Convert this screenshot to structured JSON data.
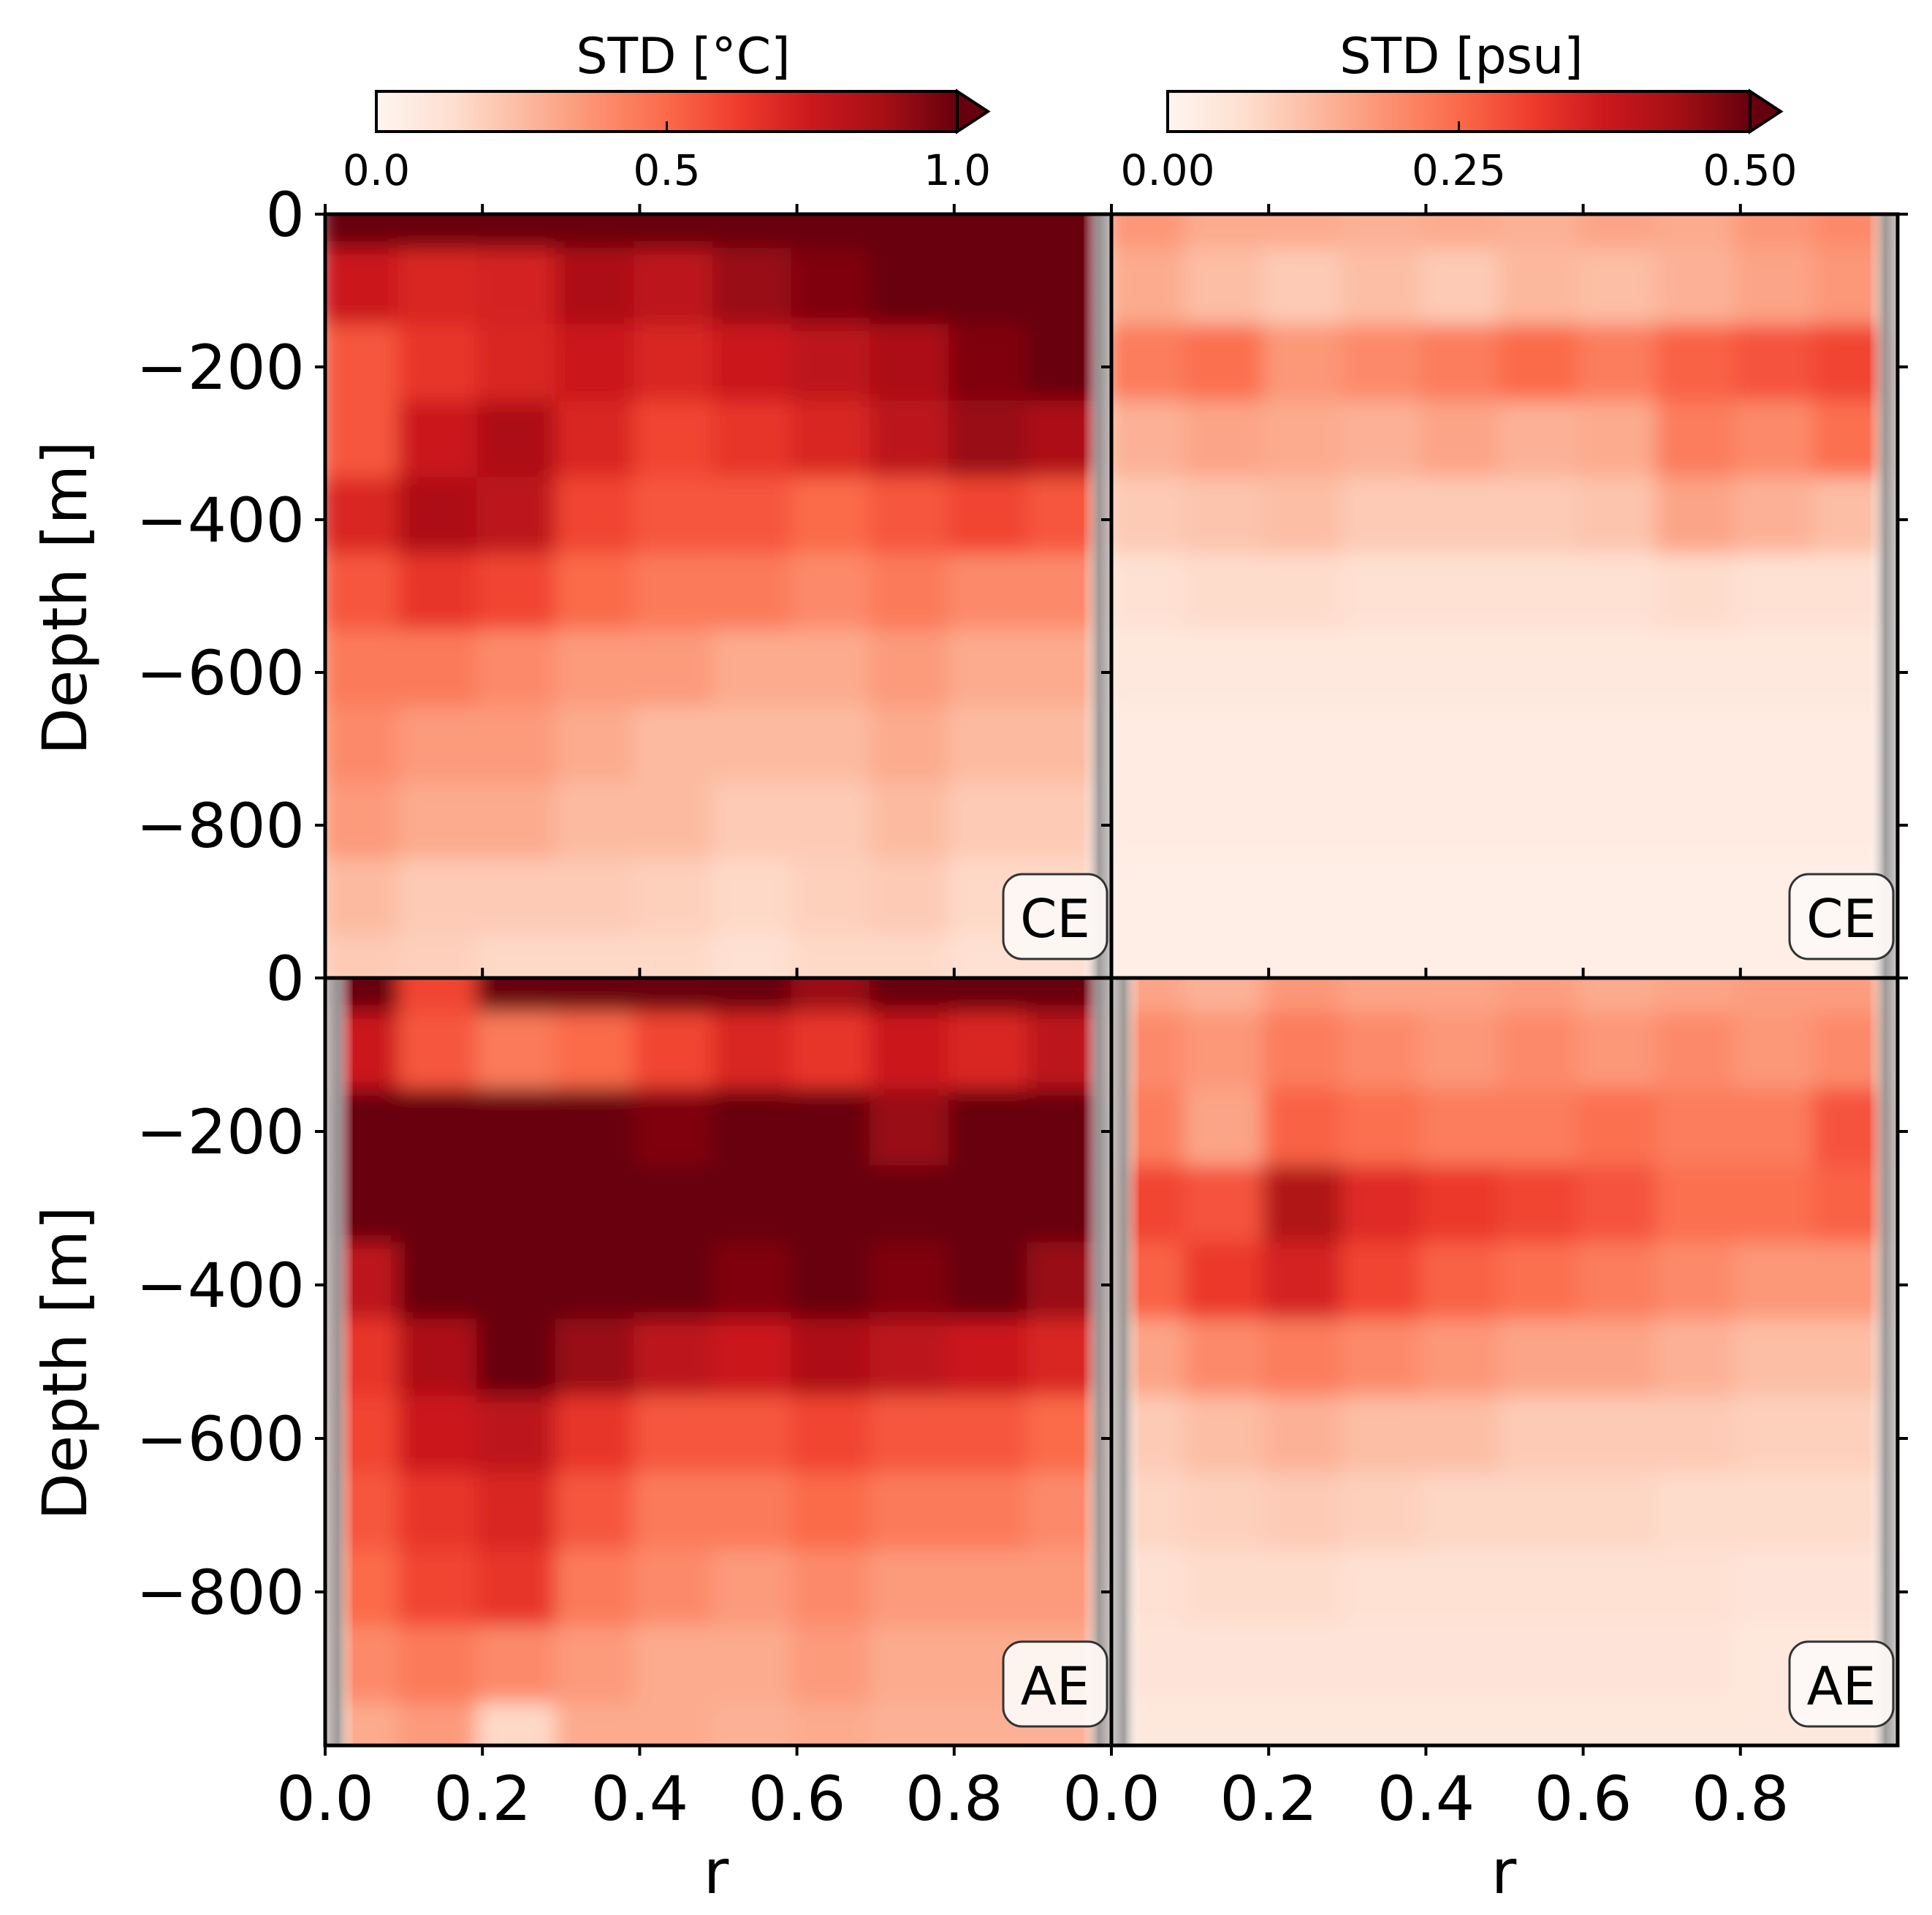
{
  "chart_data": [
    {
      "type": "heatmap",
      "panel": "top-left",
      "variable": "temperature",
      "label": "CE",
      "x": [
        0.0,
        0.1,
        0.2,
        0.3,
        0.4,
        0.5,
        0.6,
        0.7,
        0.8,
        0.9
      ],
      "y": [
        0,
        -100,
        -200,
        -300,
        -400,
        -500,
        -600,
        -700,
        -800,
        -900,
        -1000
      ],
      "values": [
        [
          1.05,
          1.05,
          1.05,
          1.05,
          1.05,
          1.05,
          1.05,
          1.05,
          1.05,
          1.05
        ],
        [
          0.75,
          0.7,
          0.72,
          0.85,
          0.8,
          0.9,
          0.95,
          1.0,
          1.05,
          1.05
        ],
        [
          0.55,
          0.65,
          0.7,
          0.75,
          0.7,
          0.75,
          0.8,
          0.85,
          0.95,
          1.05
        ],
        [
          0.55,
          0.75,
          0.85,
          0.7,
          0.6,
          0.65,
          0.7,
          0.8,
          0.9,
          0.85
        ],
        [
          0.7,
          0.85,
          0.8,
          0.6,
          0.55,
          0.55,
          0.5,
          0.55,
          0.6,
          0.55
        ],
        [
          0.55,
          0.65,
          0.6,
          0.5,
          0.45,
          0.45,
          0.4,
          0.45,
          0.4,
          0.4
        ],
        [
          0.45,
          0.45,
          0.4,
          0.35,
          0.35,
          0.3,
          0.3,
          0.35,
          0.3,
          0.3
        ],
        [
          0.4,
          0.35,
          0.35,
          0.3,
          0.25,
          0.25,
          0.25,
          0.3,
          0.25,
          0.25
        ],
        [
          0.35,
          0.3,
          0.3,
          0.25,
          0.25,
          0.2,
          0.2,
          0.25,
          0.2,
          0.2
        ],
        [
          0.25,
          0.2,
          0.2,
          0.2,
          0.18,
          0.15,
          0.18,
          0.2,
          0.15,
          0.15
        ],
        [
          0.2,
          0.18,
          0.15,
          0.15,
          0.15,
          0.12,
          0.15,
          0.15,
          0.12,
          0.12
        ]
      ],
      "vmin": 0,
      "vmax": 1.0
    },
    {
      "type": "heatmap",
      "panel": "top-right",
      "variable": "salinity",
      "label": "CE",
      "x": [
        0.0,
        0.1,
        0.2,
        0.3,
        0.4,
        0.5,
        0.6,
        0.7,
        0.8,
        0.9
      ],
      "y": [
        0,
        -100,
        -200,
        -300,
        -400,
        -500,
        -600,
        -700,
        -800,
        -900,
        -1000
      ],
      "values": [
        [
          0.18,
          0.15,
          0.15,
          0.14,
          0.15,
          0.14,
          0.16,
          0.15,
          0.18,
          0.2
        ],
        [
          0.15,
          0.12,
          0.1,
          0.12,
          0.1,
          0.13,
          0.12,
          0.14,
          0.16,
          0.18
        ],
        [
          0.22,
          0.24,
          0.18,
          0.2,
          0.22,
          0.25,
          0.22,
          0.26,
          0.28,
          0.3
        ],
        [
          0.14,
          0.16,
          0.15,
          0.14,
          0.16,
          0.14,
          0.15,
          0.22,
          0.2,
          0.24
        ],
        [
          0.1,
          0.11,
          0.12,
          0.1,
          0.1,
          0.1,
          0.11,
          0.16,
          0.14,
          0.12
        ],
        [
          0.06,
          0.07,
          0.07,
          0.06,
          0.06,
          0.06,
          0.06,
          0.07,
          0.06,
          0.06
        ],
        [
          0.04,
          0.04,
          0.04,
          0.04,
          0.04,
          0.04,
          0.04,
          0.04,
          0.04,
          0.04
        ],
        [
          0.03,
          0.03,
          0.03,
          0.03,
          0.03,
          0.03,
          0.03,
          0.03,
          0.03,
          0.03
        ],
        [
          0.03,
          0.03,
          0.03,
          0.03,
          0.03,
          0.03,
          0.03,
          0.03,
          0.03,
          0.03
        ],
        [
          0.02,
          0.02,
          0.02,
          0.02,
          0.02,
          0.02,
          0.02,
          0.02,
          0.02,
          0.02
        ],
        [
          0.02,
          0.02,
          0.02,
          0.02,
          0.02,
          0.02,
          0.02,
          0.02,
          0.02,
          0.02
        ]
      ],
      "vmin": 0,
      "vmax": 0.5
    },
    {
      "type": "heatmap",
      "panel": "bottom-left",
      "variable": "temperature",
      "label": "AE",
      "x": [
        0.0,
        0.1,
        0.2,
        0.3,
        0.4,
        0.5,
        0.6,
        0.7,
        0.8,
        0.9
      ],
      "y": [
        0,
        -100,
        -200,
        -300,
        -400,
        -500,
        -600,
        -700,
        -800,
        -900,
        -1000
      ],
      "values": [
        [
          1.05,
          0.6,
          1.05,
          1.05,
          1.05,
          1.05,
          0.9,
          1.05,
          1.05,
          1.05
        ],
        [
          0.75,
          0.55,
          0.45,
          0.5,
          0.6,
          0.7,
          0.65,
          0.75,
          0.7,
          0.8
        ],
        [
          1.05,
          1.05,
          1.05,
          1.05,
          0.95,
          1.05,
          1.05,
          0.9,
          1.05,
          1.05
        ],
        [
          1.05,
          1.05,
          1.05,
          1.05,
          1.05,
          1.05,
          1.05,
          1.05,
          1.05,
          1.05
        ],
        [
          0.8,
          1.05,
          1.05,
          1.05,
          1.05,
          0.95,
          1.05,
          0.95,
          1.05,
          0.9
        ],
        [
          0.65,
          0.85,
          1.05,
          0.9,
          0.8,
          0.75,
          0.85,
          0.8,
          0.75,
          0.7
        ],
        [
          0.6,
          0.75,
          0.8,
          0.65,
          0.55,
          0.55,
          0.6,
          0.55,
          0.55,
          0.5
        ],
        [
          0.55,
          0.65,
          0.7,
          0.55,
          0.45,
          0.45,
          0.5,
          0.45,
          0.45,
          0.4
        ],
        [
          0.5,
          0.6,
          0.65,
          0.45,
          0.4,
          0.35,
          0.4,
          0.35,
          0.35,
          0.35
        ],
        [
          0.4,
          0.45,
          0.4,
          0.35,
          0.3,
          0.3,
          0.35,
          0.3,
          0.3,
          0.3
        ],
        [
          0.3,
          0.35,
          0.15,
          0.3,
          0.3,
          0.28,
          0.3,
          0.28,
          0.28,
          0.28
        ]
      ],
      "vmin": 0,
      "vmax": 1.0
    },
    {
      "type": "heatmap",
      "panel": "bottom-right",
      "variable": "salinity",
      "label": "AE",
      "x": [
        0.0,
        0.1,
        0.2,
        0.3,
        0.4,
        0.5,
        0.6,
        0.7,
        0.8,
        0.9
      ],
      "y": [
        0,
        -100,
        -200,
        -300,
        -400,
        -500,
        -600,
        -700,
        -800,
        -900,
        -1000
      ],
      "values": [
        [
          0.16,
          0.14,
          0.18,
          0.16,
          0.16,
          0.17,
          0.15,
          0.16,
          0.17,
          0.17
        ],
        [
          0.2,
          0.18,
          0.22,
          0.2,
          0.18,
          0.2,
          0.18,
          0.2,
          0.18,
          0.2
        ],
        [
          0.22,
          0.16,
          0.26,
          0.24,
          0.22,
          0.22,
          0.24,
          0.22,
          0.22,
          0.28
        ],
        [
          0.3,
          0.28,
          0.42,
          0.34,
          0.32,
          0.3,
          0.28,
          0.24,
          0.24,
          0.26
        ],
        [
          0.26,
          0.32,
          0.36,
          0.3,
          0.26,
          0.24,
          0.22,
          0.2,
          0.18,
          0.18
        ],
        [
          0.16,
          0.2,
          0.22,
          0.2,
          0.18,
          0.16,
          0.16,
          0.14,
          0.12,
          0.12
        ],
        [
          0.1,
          0.12,
          0.14,
          0.12,
          0.12,
          0.1,
          0.1,
          0.1,
          0.09,
          0.09
        ],
        [
          0.08,
          0.09,
          0.1,
          0.09,
          0.08,
          0.08,
          0.08,
          0.07,
          0.07,
          0.07
        ],
        [
          0.06,
          0.07,
          0.07,
          0.06,
          0.06,
          0.06,
          0.06,
          0.06,
          0.05,
          0.05
        ],
        [
          0.05,
          0.05,
          0.05,
          0.05,
          0.05,
          0.05,
          0.05,
          0.05,
          0.04,
          0.04
        ],
        [
          0.04,
          0.04,
          0.04,
          0.04,
          0.04,
          0.04,
          0.04,
          0.04,
          0.04,
          0.04
        ]
      ],
      "vmin": 0,
      "vmax": 0.5
    }
  ],
  "colorbars": [
    {
      "title": "STD [$^\\circ$C]",
      "display_title": "STD [°C]",
      "ticks": [
        "0.0",
        "0.5",
        "1.0"
      ],
      "tick_values": [
        0,
        0.5,
        1.0
      ],
      "vmin": 0,
      "vmax": 1.0,
      "extend": "max"
    },
    {
      "title": "STD [psu]",
      "ticks": [
        "0.00",
        "0.25",
        "0.50"
      ],
      "tick_values": [
        0,
        0.25,
        0.5
      ],
      "vmin": 0,
      "vmax": 0.5,
      "extend": "max"
    }
  ],
  "axes": {
    "xlabel": "r",
    "ylabel": "Depth [m]",
    "xticks": [
      "0.0",
      "0.2",
      "0.4",
      "0.6",
      "0.8"
    ],
    "xtick_values": [
      0,
      0.2,
      0.4,
      0.6,
      0.8
    ],
    "yticks": [
      "0",
      "−200",
      "−400",
      "−600",
      "−800"
    ],
    "ytick_values": [
      0,
      -200,
      -400,
      -600,
      -800
    ],
    "xlim": [
      0,
      1.0
    ],
    "ylim": [
      -1000,
      0
    ]
  },
  "colormap": {
    "name": "Reds",
    "stops": [
      "#fff5f0",
      "#fee0d2",
      "#fcbba1",
      "#fc9272",
      "#fb6a4a",
      "#ef3b2c",
      "#cb181d",
      "#a50f15",
      "#67000d"
    ],
    "over": "#67000d",
    "edge_shade": "#9a9a9a"
  }
}
